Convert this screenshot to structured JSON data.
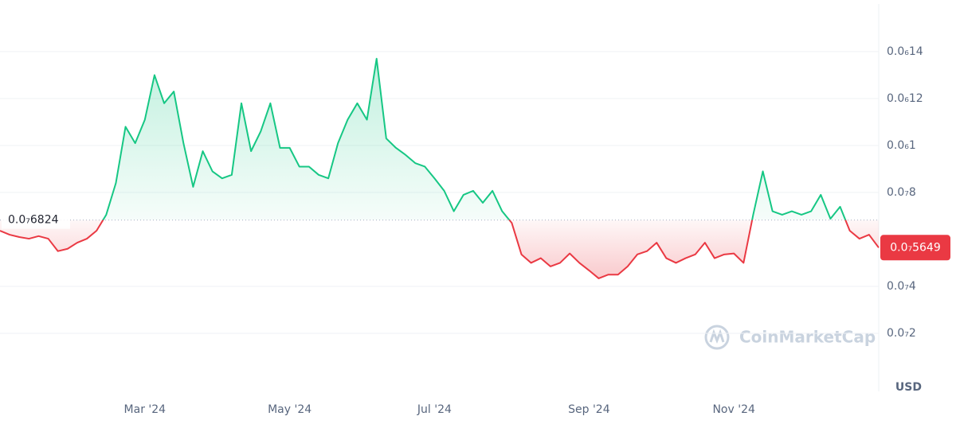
{
  "chart_data": {
    "type": "line",
    "categories": [
      null,
      null,
      null,
      null,
      null,
      null,
      null,
      null,
      null,
      null,
      null,
      null,
      null,
      null,
      null,
      "Mar '24",
      null,
      null,
      null,
      null,
      null,
      null,
      null,
      null,
      null,
      null,
      null,
      null,
      null,
      null,
      "May '24",
      null,
      null,
      null,
      null,
      null,
      null,
      null,
      null,
      null,
      null,
      null,
      null,
      null,
      null,
      "Jul '24",
      null,
      null,
      null,
      null,
      null,
      null,
      null,
      null,
      null,
      null,
      null,
      null,
      null,
      null,
      null,
      "Sep '24",
      null,
      null,
      null,
      null,
      null,
      null,
      null,
      null,
      null,
      null,
      null,
      null,
      null,
      null,
      "Nov '24",
      null,
      null,
      null,
      null,
      null,
      null,
      null,
      null,
      null,
      null,
      null,
      null,
      null,
      null,
      null
    ],
    "series": [
      {
        "values": [
          6.37e-08,
          6.2e-08,
          6.1e-08,
          6.03e-08,
          6.14e-08,
          6.03e-08,
          5.5e-08,
          5.6e-08,
          5.86e-08,
          6.03e-08,
          6.37e-08,
          7.05e-08,
          8.4e-08,
          1.08e-07,
          1.01e-07,
          1.11e-07,
          1.3e-07,
          1.18e-07,
          1.23e-07,
          1.01e-07,
          8.24e-08,
          9.76e-08,
          8.9e-08,
          8.6e-08,
          8.75e-08,
          1.18e-07,
          9.76e-08,
          1.06e-07,
          1.18e-07,
          9.9e-08,
          9.9e-08,
          9.1e-08,
          9.1e-08,
          8.75e-08,
          8.6e-08,
          1.01e-07,
          1.11e-07,
          1.18e-07,
          1.11e-07,
          1.37e-07,
          1.03e-07,
          9.9e-08,
          9.6e-08,
          9.25e-08,
          9.1e-08,
          8.6e-08,
          8.07e-08,
          7.2e-08,
          7.9e-08,
          8.07e-08,
          7.56e-08,
          8.07e-08,
          7.2e-08,
          6.7e-08,
          5.36e-08,
          5e-08,
          5.2e-08,
          4.85e-08,
          5e-08,
          5.4e-08,
          5e-08,
          4.68e-08,
          4.34e-08,
          4.5e-08,
          4.5e-08,
          4.85e-08,
          5.36e-08,
          5.5e-08,
          5.86e-08,
          5.2e-08,
          5e-08,
          5.2e-08,
          5.36e-08,
          5.86e-08,
          5.2e-08,
          5.36e-08,
          5.4e-08,
          5e-08,
          7.05e-08,
          8.9e-08,
          7.2e-08,
          7.05e-08,
          7.2e-08,
          7.05e-08,
          7.2e-08,
          7.9e-08,
          6.88e-08,
          7.39e-08,
          6.37e-08,
          6.03e-08,
          6.2e-08,
          5.649e-08
        ],
        "value_labels": [
          null,
          null,
          null,
          null,
          null,
          null,
          null,
          null,
          null,
          null,
          null,
          null,
          null,
          null,
          null,
          null,
          null,
          null,
          null,
          null,
          null,
          null,
          null,
          null,
          null,
          null,
          null,
          null,
          null,
          null,
          null,
          null,
          null,
          null,
          null,
          null,
          null,
          null,
          null,
          null,
          null,
          null,
          null,
          null,
          null,
          null,
          null,
          null,
          null,
          null,
          null,
          null,
          null,
          null,
          null,
          null,
          null,
          null,
          null,
          null,
          null,
          null,
          null,
          null,
          null,
          null,
          null,
          null,
          null,
          null,
          null,
          null,
          null,
          null,
          null,
          null,
          null,
          null,
          null,
          null,
          null,
          null,
          null,
          null,
          null,
          null,
          null,
          null,
          null,
          null,
          null,
          "0.0₇5649"
        ]
      }
    ],
    "up_color": "#16c784",
    "down_color": "#ea3943",
    "baseline": {
      "value": 6.824e-08,
      "label": "0.0₇6824"
    },
    "ylim": [
      -4.75e-09,
      1.603e-07
    ],
    "yticks": [
      {
        "value": 2e-08,
        "label": "0.0₇2"
      },
      {
        "value": 4e-08,
        "label": "0.0₇4"
      },
      {
        "value": 8e-08,
        "label": "0.0₇8"
      },
      {
        "value": 1e-07,
        "label": "0.0₆1"
      },
      {
        "value": 1.2e-07,
        "label": "0.0₆12"
      },
      {
        "value": 1.4e-07,
        "label": "0.0₆14"
      }
    ],
    "grid": true,
    "y_unit": "USD",
    "watermark": "CoinMarketCap"
  }
}
